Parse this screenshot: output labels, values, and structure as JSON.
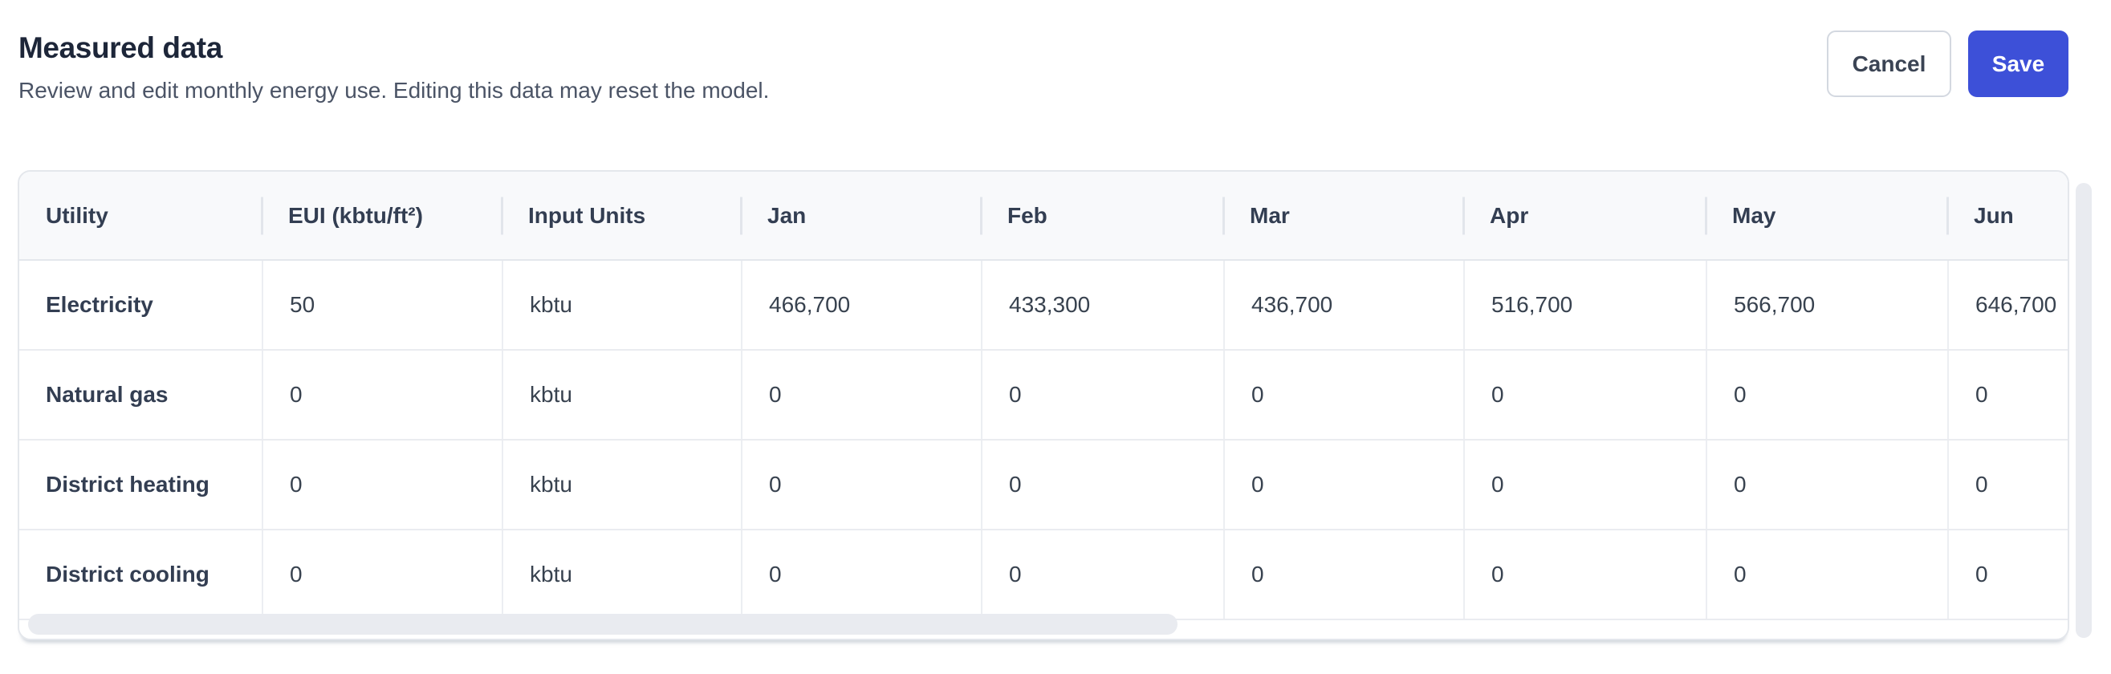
{
  "header": {
    "title": "Measured data",
    "subtitle": "Review and edit monthly energy use. Editing this data may reset the model.",
    "actions": {
      "cancel_label": "Cancel",
      "save_label": "Save"
    }
  },
  "colors": {
    "accent_blue": "#3d50d8",
    "title_text": "#1d2639",
    "body_text": "#38424f",
    "muted_text": "#4b5466",
    "card_border": "#e4e7ec",
    "header_bg": "#f8f9fb",
    "scrollbar_thumb": "#e9ebf0"
  },
  "table": {
    "columns": [
      "Utility",
      "EUI (kbtu/ft²)",
      "Input Units",
      "Jan",
      "Feb",
      "Mar",
      "Apr",
      "May",
      "Jun"
    ],
    "rows": [
      {
        "utility": "Electricity",
        "eui": "50",
        "input_units": "kbtu",
        "values": [
          "466,700",
          "433,300",
          "436,700",
          "516,700",
          "566,700",
          "646,700"
        ]
      },
      {
        "utility": "Natural gas",
        "eui": "0",
        "input_units": "kbtu",
        "values": [
          "0",
          "0",
          "0",
          "0",
          "0",
          "0"
        ]
      },
      {
        "utility": "District heating",
        "eui": "0",
        "input_units": "kbtu",
        "values": [
          "0",
          "0",
          "0",
          "0",
          "0",
          "0"
        ]
      },
      {
        "utility": "District cooling",
        "eui": "0",
        "input_units": "kbtu",
        "values": [
          "0",
          "0",
          "0",
          "0",
          "0",
          "0"
        ]
      }
    ]
  }
}
